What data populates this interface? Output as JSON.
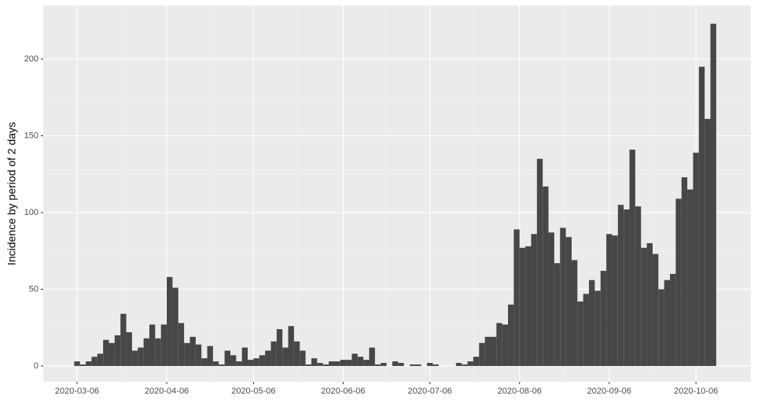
{
  "chart_data": {
    "type": "histogram",
    "ylabel": "Incidence by period of 2 days",
    "color": "#474747",
    "bins": [
      -1,
      1,
      3,
      5,
      7,
      9,
      11,
      13,
      15,
      17,
      19,
      21,
      23,
      25,
      27,
      29,
      31,
      33,
      35,
      37,
      39,
      41,
      43,
      45,
      47,
      49,
      51,
      53,
      55,
      57,
      59,
      61,
      63,
      65,
      67,
      69,
      71,
      73,
      75,
      77,
      79,
      81,
      83,
      85,
      87,
      89,
      91,
      93,
      95,
      97,
      99,
      101,
      103,
      105,
      107,
      109,
      111,
      113,
      115,
      117,
      119,
      121,
      123,
      125,
      127,
      129,
      131,
      133,
      135,
      137,
      139,
      141,
      143,
      145,
      147,
      149,
      151,
      153,
      155,
      157,
      159,
      161,
      163,
      165,
      167,
      169,
      171,
      173,
      175,
      177,
      179,
      181,
      183,
      185,
      187,
      189,
      191,
      193,
      195,
      197,
      199,
      201,
      203,
      205,
      207,
      209,
      211,
      213,
      215,
      217,
      219,
      221
    ],
    "counts": [
      3,
      1,
      3,
      6,
      8,
      17,
      15,
      20,
      34,
      22,
      10,
      12,
      18,
      27,
      18,
      27,
      58,
      51,
      28,
      15,
      19,
      14,
      5,
      13,
      3,
      1,
      10,
      7,
      3,
      12,
      4,
      5,
      7,
      10,
      16,
      24,
      12,
      26,
      16,
      10,
      1,
      5,
      2,
      1,
      3,
      3,
      4,
      4,
      8,
      6,
      4,
      12,
      1,
      2,
      0,
      3,
      2,
      0,
      1,
      1,
      0,
      2,
      1,
      0,
      0,
      0,
      2,
      1,
      3,
      6,
      15,
      19,
      19,
      28,
      27,
      40,
      89,
      77,
      78,
      86,
      135,
      117,
      87,
      67,
      90,
      84,
      69,
      42,
      47,
      56,
      49,
      62,
      86,
      85,
      105,
      102,
      141,
      104,
      77,
      80,
      73,
      50,
      56,
      60,
      109,
      123,
      115,
      139,
      195,
      161,
      223
    ],
    "xlim": [
      -11.7,
      233
    ],
    "xticks": [
      {
        "value": 0,
        "label": "2020-03-06"
      },
      {
        "value": 31,
        "label": "2020-04-06"
      },
      {
        "value": 61,
        "label": "2020-05-06"
      },
      {
        "value": 92,
        "label": "2020-06-06"
      },
      {
        "value": 122,
        "label": "2020-07-06"
      },
      {
        "value": 153,
        "label": "2020-08-06"
      },
      {
        "value": 184,
        "label": "2020-09-06"
      },
      {
        "value": 214,
        "label": "2020-10-06"
      }
    ],
    "ylim": [
      -10.3,
      234.9
    ],
    "yticks": [
      0,
      50,
      100,
      150,
      200
    ],
    "grid": true
  }
}
